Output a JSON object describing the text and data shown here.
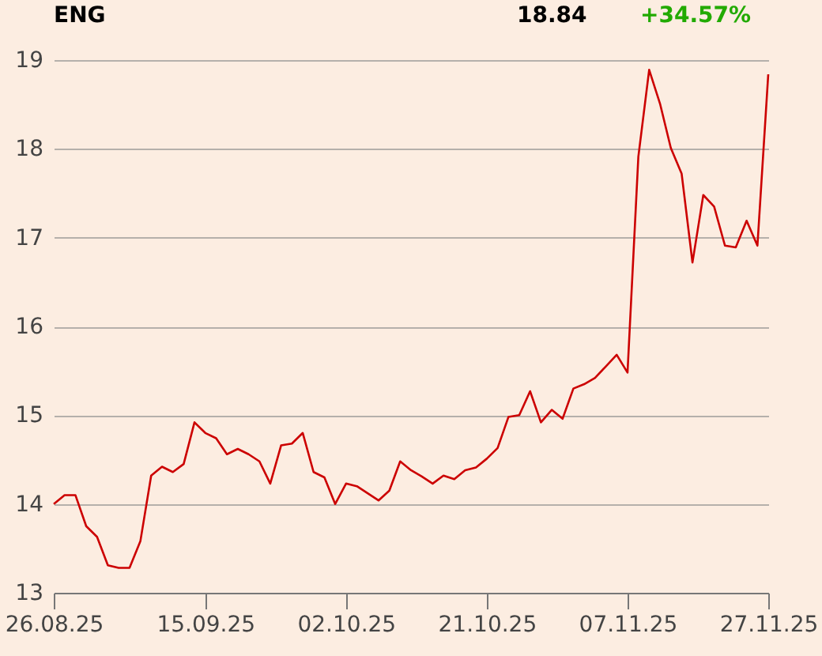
{
  "chart_data": {
    "type": "line",
    "title": "ENG",
    "annotations": [
      "18.84",
      "+34.57%"
    ],
    "categories": [
      "26.08.25",
      null,
      null,
      null,
      null,
      null,
      null,
      null,
      null,
      null,
      null,
      null,
      null,
      null,
      "15.09.25",
      null,
      null,
      null,
      null,
      null,
      null,
      null,
      null,
      null,
      null,
      null,
      null,
      "02.10.25",
      null,
      null,
      null,
      null,
      null,
      null,
      null,
      null,
      null,
      null,
      null,
      null,
      "21.10.25",
      null,
      null,
      null,
      null,
      null,
      null,
      null,
      null,
      null,
      null,
      null,
      null,
      "07.11.25",
      null,
      null,
      null,
      null,
      null,
      null,
      null,
      null,
      null,
      null,
      null,
      null,
      "27.11.25"
    ],
    "series": [
      {
        "color": "#cc0000",
        "values": [
          14.0,
          14.1,
          14.1,
          13.75,
          13.63,
          13.31,
          13.28,
          13.28,
          13.58,
          14.32,
          14.42,
          14.36,
          14.45,
          14.92,
          14.8,
          14.74,
          14.56,
          14.62,
          14.56,
          14.48,
          14.23,
          14.66,
          14.68,
          14.8,
          14.36,
          14.3,
          14.0,
          14.23,
          14.2,
          14.12,
          14.04,
          14.15,
          14.48,
          14.38,
          14.31,
          14.23,
          14.32,
          14.28,
          14.38,
          14.41,
          14.51,
          14.63,
          14.98,
          15.0,
          15.27,
          14.92,
          15.06,
          14.96,
          15.3,
          15.35,
          15.42,
          15.55,
          15.68,
          15.48,
          17.91,
          18.89,
          18.51,
          18.01,
          17.72,
          16.72,
          17.48,
          17.35,
          16.91,
          16.89,
          17.19,
          16.91,
          18.84
        ]
      }
    ],
    "ylim": [
      13,
      19
    ],
    "yticks": [
      13,
      14,
      15,
      16,
      17,
      18,
      19
    ],
    "grid": "y"
  }
}
